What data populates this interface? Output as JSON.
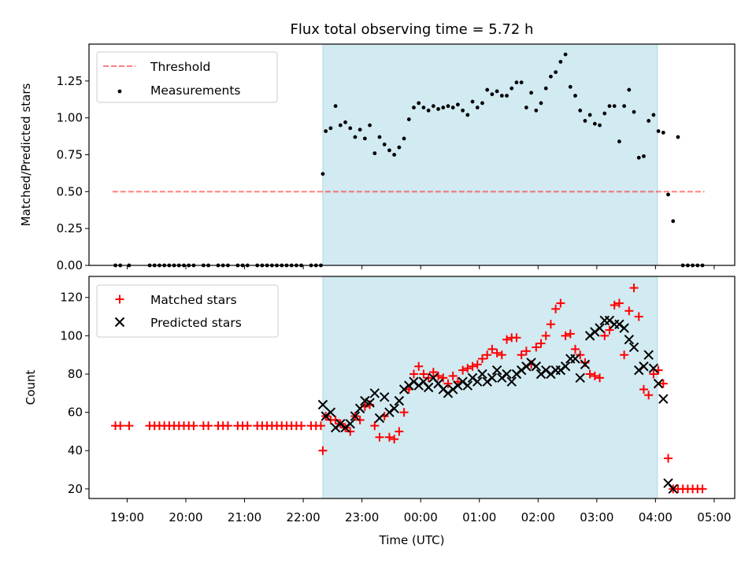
{
  "title": "Flux total observing time = 5.72 h",
  "colors": {
    "shade": "#add8e6",
    "threshold": "#ff0000",
    "measurement": "#000000",
    "matched": "#ff0000",
    "predicted": "#000000"
  },
  "chart_data": [
    {
      "type": "scatter",
      "panel": "top",
      "ylabel": "Matched/Predicted stars",
      "xlim_hours": [
        18.35,
        29.35
      ],
      "ylim": [
        0,
        1.5
      ],
      "yticks": [
        0.0,
        0.25,
        0.5,
        0.75,
        1.0,
        1.25
      ],
      "ytick_labels": [
        "0.00",
        "0.25",
        "0.50",
        "0.75",
        "1.00",
        "1.25"
      ],
      "shaded_region": [
        "22:20",
        "04:02"
      ],
      "legend": {
        "placement": "upper-left",
        "entries": [
          "Threshold",
          "Measurements"
        ]
      },
      "threshold": {
        "name": "Threshold",
        "x": [
          "18:45",
          "04:50"
        ],
        "y": 0.5
      },
      "series": [
        {
          "name": "Measurements",
          "x": [
            "18:48",
            "18:53",
            "19:02",
            "19:23",
            "19:28",
            "19:33",
            "19:38",
            "19:43",
            "19:48",
            "19:53",
            "19:58",
            "20:03",
            "20:08",
            "20:18",
            "20:23",
            "20:33",
            "20:38",
            "20:43",
            "20:53",
            "20:58",
            "21:03",
            "21:13",
            "21:18",
            "21:23",
            "21:28",
            "21:33",
            "21:38",
            "21:43",
            "21:48",
            "21:53",
            "21:58",
            "22:08",
            "22:13",
            "22:18",
            "22:20",
            "22:23",
            "22:28",
            "22:33",
            "22:38",
            "22:43",
            "22:48",
            "22:53",
            "22:58",
            "23:03",
            "23:08",
            "23:13",
            "23:18",
            "23:23",
            "23:28",
            "23:33",
            "23:38",
            "23:43",
            "23:48",
            "23:53",
            "23:58",
            "00:03",
            "00:08",
            "00:13",
            "00:18",
            "00:23",
            "00:28",
            "00:33",
            "00:38",
            "00:43",
            "00:48",
            "00:53",
            "00:58",
            "01:03",
            "01:08",
            "01:13",
            "01:18",
            "01:23",
            "01:28",
            "01:33",
            "01:38",
            "01:43",
            "01:48",
            "01:53",
            "01:58",
            "02:03",
            "02:08",
            "02:13",
            "02:18",
            "02:23",
            "02:28",
            "02:33",
            "02:38",
            "02:43",
            "02:48",
            "02:53",
            "02:58",
            "03:03",
            "03:08",
            "03:13",
            "03:18",
            "03:23",
            "03:28",
            "03:33",
            "03:38",
            "03:43",
            "03:48",
            "03:53",
            "03:58",
            "04:03",
            "04:08",
            "04:13",
            "04:18",
            "04:23",
            "04:28",
            "04:33",
            "04:38",
            "04:43",
            "04:48"
          ],
          "y": [
            0,
            0,
            0,
            0,
            0,
            0,
            0,
            0,
            0,
            0,
            0,
            0,
            0,
            0,
            0,
            0,
            0,
            0,
            0,
            0,
            0,
            0,
            0,
            0,
            0,
            0,
            0,
            0,
            0,
            0,
            0,
            0,
            0,
            0,
            0.62,
            0.91,
            0.93,
            1.08,
            0.95,
            0.97,
            0.93,
            0.87,
            0.92,
            0.86,
            0.95,
            0.76,
            0.87,
            0.82,
            0.78,
            0.75,
            0.8,
            0.86,
            0.99,
            1.07,
            1.1,
            1.07,
            1.05,
            1.08,
            1.06,
            1.07,
            1.08,
            1.07,
            1.09,
            1.05,
            1.02,
            1.11,
            1.07,
            1.1,
            1.19,
            1.16,
            1.18,
            1.15,
            1.15,
            1.2,
            1.24,
            1.24,
            1.07,
            1.17,
            1.05,
            1.1,
            1.2,
            1.28,
            1.31,
            1.38,
            1.43,
            1.21,
            1.15,
            1.05,
            0.98,
            1.02,
            0.96,
            0.95,
            1.03,
            1.08,
            1.08,
            0.84,
            1.08,
            1.19,
            1.04,
            0.73,
            0.74,
            0.98,
            1.02,
            0.91,
            0.9,
            0.48,
            0.3,
            0.87,
            0,
            0,
            0,
            0,
            0
          ]
        }
      ]
    },
    {
      "type": "scatter",
      "panel": "bottom",
      "xlabel": "Time (UTC)",
      "ylabel": "Count",
      "xlim_hours": [
        18.35,
        29.35
      ],
      "ylim": [
        15,
        131
      ],
      "yticks": [
        20,
        40,
        60,
        80,
        100,
        120
      ],
      "xtick_labels": [
        "19:00",
        "20:00",
        "21:00",
        "22:00",
        "23:00",
        "00:00",
        "01:00",
        "02:00",
        "03:00",
        "04:00",
        "05:00"
      ],
      "shaded_region": [
        "22:20",
        "04:02"
      ],
      "legend": {
        "placement": "upper-left",
        "entries": [
          "Matched stars",
          "Predicted stars"
        ]
      },
      "series": [
        {
          "name": "Matched stars",
          "marker": "plus",
          "x": [
            "18:48",
            "18:53",
            "19:02",
            "19:23",
            "19:28",
            "19:33",
            "19:38",
            "19:43",
            "19:48",
            "19:53",
            "19:58",
            "20:03",
            "20:08",
            "20:18",
            "20:23",
            "20:33",
            "20:38",
            "20:43",
            "20:53",
            "20:58",
            "21:03",
            "21:13",
            "21:18",
            "21:23",
            "21:28",
            "21:33",
            "21:38",
            "21:43",
            "21:48",
            "21:53",
            "21:58",
            "22:08",
            "22:13",
            "22:18",
            "22:20",
            "22:23",
            "22:28",
            "22:33",
            "22:38",
            "22:43",
            "22:48",
            "22:53",
            "22:58",
            "23:03",
            "23:08",
            "23:13",
            "23:18",
            "23:23",
            "23:28",
            "23:33",
            "23:38",
            "23:43",
            "23:48",
            "23:53",
            "23:58",
            "00:03",
            "00:08",
            "00:13",
            "00:18",
            "00:23",
            "00:28",
            "00:33",
            "00:38",
            "00:43",
            "00:48",
            "00:53",
            "00:58",
            "01:03",
            "01:08",
            "01:13",
            "01:18",
            "01:23",
            "01:28",
            "01:33",
            "01:38",
            "01:43",
            "01:48",
            "01:53",
            "01:58",
            "02:03",
            "02:08",
            "02:13",
            "02:18",
            "02:23",
            "02:28",
            "02:33",
            "02:38",
            "02:43",
            "02:48",
            "02:53",
            "02:58",
            "03:03",
            "03:08",
            "03:13",
            "03:18",
            "03:23",
            "03:28",
            "03:33",
            "03:38",
            "03:43",
            "03:48",
            "03:53",
            "03:58",
            "04:03",
            "04:08",
            "04:13",
            "04:18",
            "04:23",
            "04:28",
            "04:33",
            "04:38",
            "04:43",
            "04:48"
          ],
          "y": [
            53,
            53,
            53,
            53,
            53,
            53,
            53,
            53,
            53,
            53,
            53,
            53,
            53,
            53,
            53,
            53,
            53,
            53,
            53,
            53,
            53,
            53,
            53,
            53,
            53,
            53,
            53,
            53,
            53,
            53,
            53,
            53,
            53,
            53,
            40,
            58,
            56,
            56,
            54,
            52,
            50,
            58,
            56,
            63,
            64,
            53,
            47,
            58,
            47,
            46,
            50,
            60,
            72,
            80,
            84,
            80,
            78,
            81,
            79,
            78,
            75,
            79,
            76,
            82,
            83,
            84,
            85,
            88,
            90,
            93,
            91,
            90,
            98,
            99,
            99,
            90,
            92,
            85,
            94,
            96,
            100,
            106,
            114,
            117,
            100,
            101,
            93,
            90,
            86,
            80,
            79,
            78,
            100,
            103,
            116,
            117,
            90,
            113,
            125,
            110,
            72,
            69,
            80,
            82,
            75,
            36,
            20,
            20,
            20,
            20,
            20,
            20,
            20
          ]
        },
        {
          "name": "Predicted stars",
          "marker": "x",
          "x": [
            "22:20",
            "22:23",
            "22:28",
            "22:33",
            "22:38",
            "22:43",
            "22:48",
            "22:53",
            "22:58",
            "23:03",
            "23:08",
            "23:13",
            "23:18",
            "23:23",
            "23:28",
            "23:33",
            "23:38",
            "23:43",
            "23:48",
            "23:53",
            "23:58",
            "00:03",
            "00:08",
            "00:13",
            "00:18",
            "00:23",
            "00:28",
            "00:33",
            "00:38",
            "00:43",
            "00:48",
            "00:53",
            "00:58",
            "01:03",
            "01:08",
            "01:13",
            "01:18",
            "01:23",
            "01:28",
            "01:33",
            "01:38",
            "01:43",
            "01:48",
            "01:53",
            "01:58",
            "02:03",
            "02:08",
            "02:13",
            "02:18",
            "02:23",
            "02:28",
            "02:33",
            "02:38",
            "02:43",
            "02:48",
            "02:53",
            "02:58",
            "03:03",
            "03:08",
            "03:13",
            "03:18",
            "03:23",
            "03:28",
            "03:33",
            "03:38",
            "03:43",
            "03:48",
            "03:53",
            "03:58",
            "04:03",
            "04:08",
            "04:13",
            "04:18"
          ],
          "y": [
            64,
            58,
            60,
            52,
            54,
            52,
            54,
            58,
            62,
            66,
            65,
            70,
            57,
            68,
            60,
            62,
            66,
            72,
            74,
            76,
            74,
            76,
            73,
            78,
            75,
            72,
            70,
            72,
            74,
            76,
            74,
            78,
            76,
            80,
            76,
            78,
            82,
            78,
            80,
            76,
            80,
            82,
            84,
            86,
            84,
            80,
            82,
            80,
            82,
            82,
            84,
            88,
            88,
            78,
            85,
            100,
            102,
            104,
            108,
            108,
            106,
            106,
            104,
            98,
            94,
            82,
            84,
            90,
            83,
            75,
            67,
            23,
            20
          ]
        }
      ]
    }
  ]
}
